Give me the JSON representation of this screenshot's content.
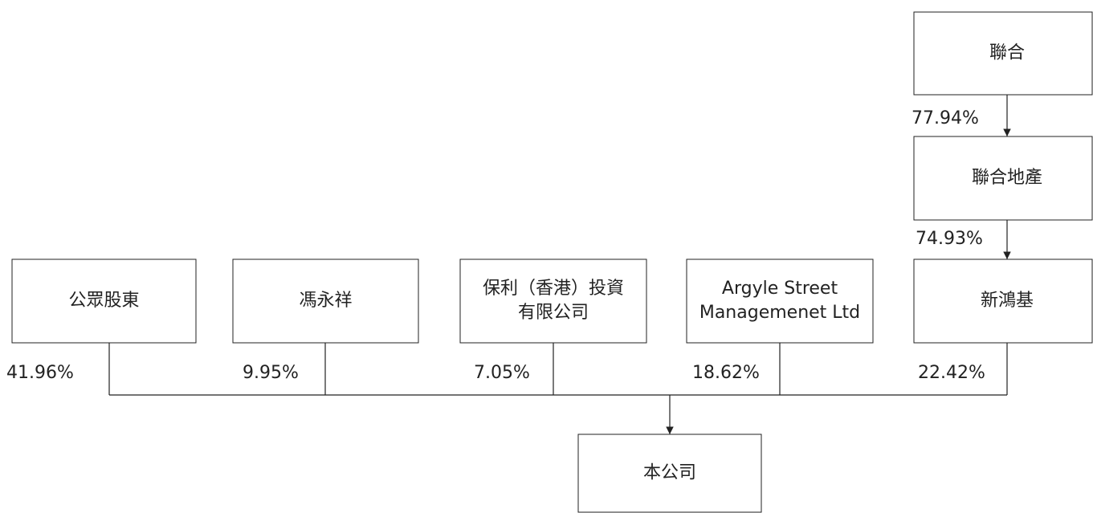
{
  "nodes": [
    {
      "label": [
        "聯合"
      ]
    },
    {
      "label": [
        "聯合地產"
      ]
    },
    {
      "label": [
        "新鴻基"
      ]
    },
    {
      "label": [
        "公眾股東"
      ]
    },
    {
      "label": [
        "馮永祥"
      ]
    },
    {
      "label": [
        "保利（香港）投資",
        "有限公司"
      ]
    },
    {
      "label": [
        "Argyle Street",
        "Managemenet Ltd"
      ]
    },
    {
      "label": [
        "本公司"
      ]
    }
  ],
  "edges": [
    {
      "label": "77.94%"
    },
    {
      "label": "74.93%"
    },
    {
      "label": "41.96%"
    },
    {
      "label": "9.95%"
    },
    {
      "label": "7.05%"
    },
    {
      "label": "18.62%"
    },
    {
      "label": "22.42%"
    }
  ]
}
